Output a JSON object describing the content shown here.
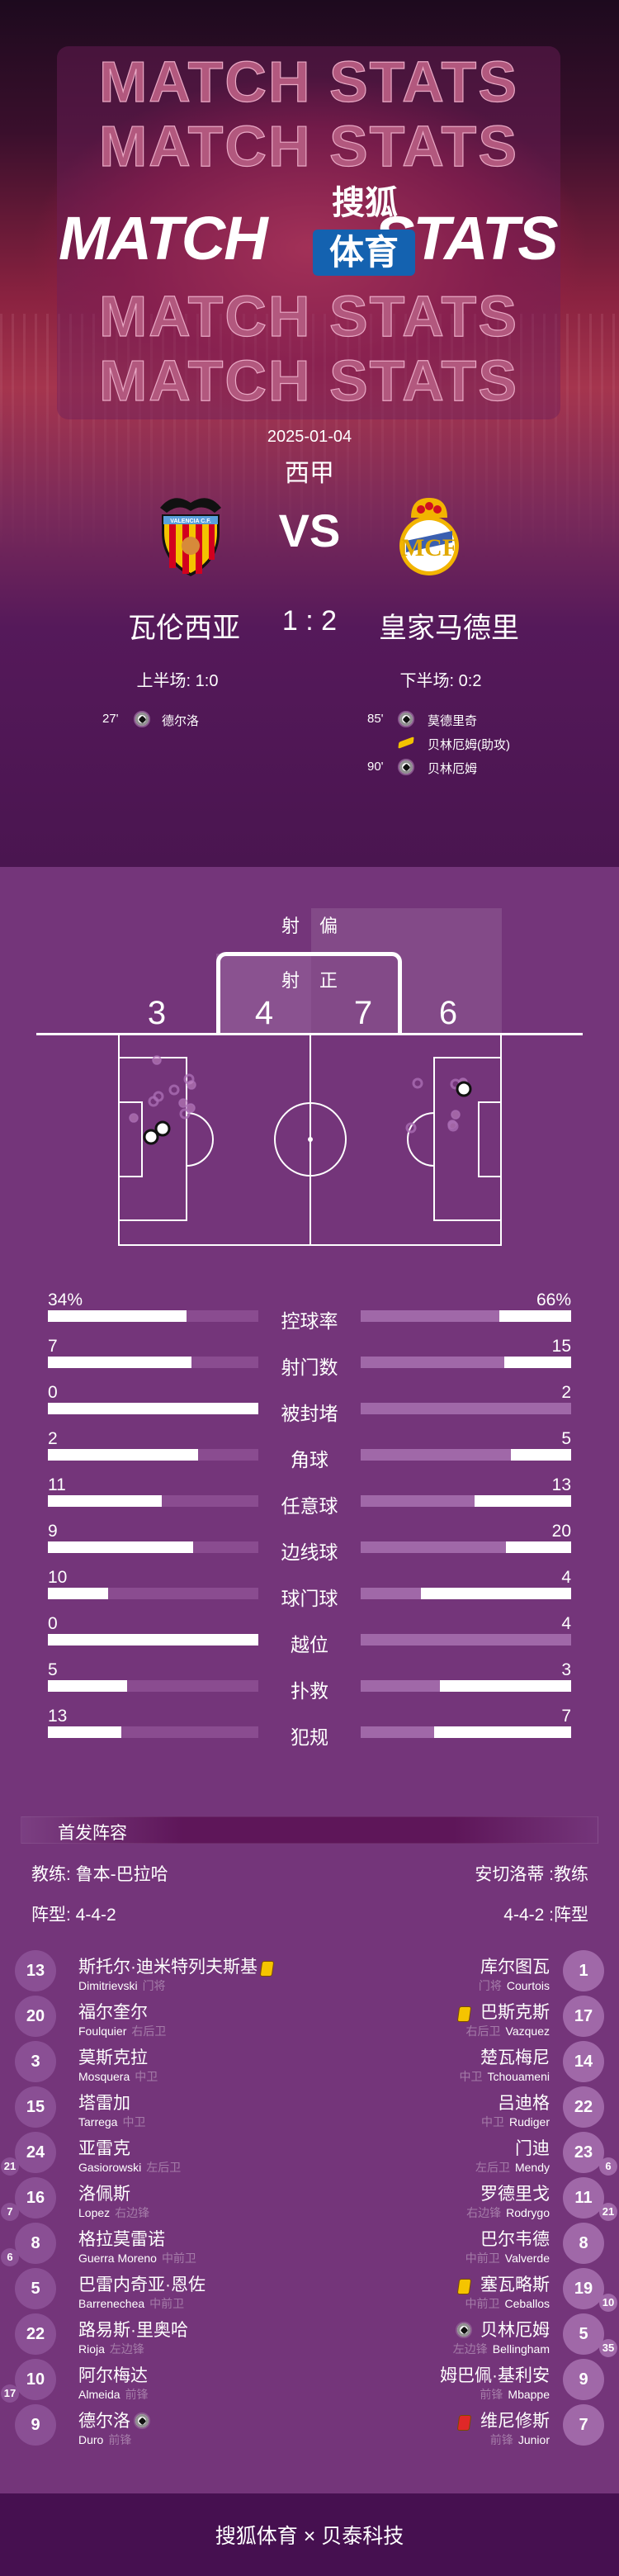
{
  "header": {
    "ghost_text": "MATCH STATS",
    "title_left": "MATCH",
    "title_right": "STATS",
    "brand_top": "搜狐",
    "brand_badge": "体育",
    "brand_badge_color": "#1462b0"
  },
  "match": {
    "date": "2025-01-04",
    "league": "西甲",
    "vs": "VS",
    "home": {
      "name": "瓦伦西亚",
      "crest": "valencia-crest",
      "crest_text": "VALENCIA C.F."
    },
    "away": {
      "name": "皇家马德里",
      "crest": "real-madrid-crest"
    },
    "score": "1 : 2",
    "first_half": "上半场: 1:0",
    "second_half": "下半场: 0:2",
    "home_events": [
      {
        "minute": "27'",
        "icon": "goal-ball-icon",
        "player": "德尔洛"
      }
    ],
    "away_events": [
      {
        "minute": "85'",
        "icon": "goal-ball-icon",
        "player": "莫德里奇"
      },
      {
        "minute": "",
        "icon": "assist-boot-icon",
        "player": "贝林厄姆(助攻)"
      },
      {
        "minute": "90'",
        "icon": "goal-ball-icon",
        "player": "贝林厄姆"
      }
    ]
  },
  "shots": {
    "off_target_label": "射偏",
    "on_target_label": "射正",
    "home_off_target": "3",
    "home_on_target": "4",
    "away_on_target": "7",
    "away_off_target": "6"
  },
  "stats": [
    {
      "label": "控球率",
      "home": "34%",
      "away": "66%",
      "home_value": 34,
      "away_value": 66
    },
    {
      "label": "射门数",
      "home": "7",
      "away": "15",
      "home_value": 7,
      "away_value": 15
    },
    {
      "label": "被封堵",
      "home": "0",
      "away": "2",
      "home_value": 0,
      "away_value": 2
    },
    {
      "label": "角球",
      "home": "2",
      "away": "5",
      "home_value": 2,
      "away_value": 5
    },
    {
      "label": "任意球",
      "home": "11",
      "away": "13",
      "home_value": 11,
      "away_value": 13
    },
    {
      "label": "边线球",
      "home": "9",
      "away": "20",
      "home_value": 9,
      "away_value": 20
    },
    {
      "label": "球门球",
      "home": "10",
      "away": "4",
      "home_value": 10,
      "away_value": 4
    },
    {
      "label": "越位",
      "home": "0",
      "away": "4",
      "home_value": 0,
      "away_value": 4
    },
    {
      "label": "扑救",
      "home": "5",
      "away": "3",
      "home_value": 5,
      "away_value": 3
    },
    {
      "label": "犯规",
      "home": "13",
      "away": "7",
      "home_value": 13,
      "away_value": 7
    }
  ],
  "colors": {
    "background": "#74357a",
    "hero_bottom": "#4a1550",
    "home_bar": "#8a4c90",
    "away_bar": "#a068a8",
    "home_number": "#8a4f94",
    "away_number": "#a068a8",
    "yellow_card": "#f5c400",
    "red_card": "#e02828",
    "footer": "#461050"
  },
  "lineup": {
    "title": "首发阵容",
    "home_coach": "教练: 鲁本-巴拉哈",
    "away_coach": "安切洛蒂 :教练",
    "home_formation": "阵型: 4-4-2",
    "away_formation": "4-4-2 :阵型",
    "home": [
      {
        "number": "13",
        "name": "斯托尔·迪米特列夫斯基",
        "en": "Dimitrievski",
        "pos": "门将",
        "events": [
          "yellow-card"
        ]
      },
      {
        "number": "20",
        "name": "福尔奎尔",
        "en": "Foulquier",
        "pos": "右后卫",
        "events": []
      },
      {
        "number": "3",
        "name": "莫斯克拉",
        "en": "Mosquera",
        "pos": "中卫",
        "events": []
      },
      {
        "number": "15",
        "name": "塔雷加",
        "en": "Tarrega",
        "pos": "中卫",
        "events": []
      },
      {
        "number": "24",
        "sub": "21",
        "name": "亚雷克",
        "en": "Gasiorowski",
        "pos": "左后卫",
        "events": []
      },
      {
        "number": "16",
        "sub": "7",
        "name": "洛佩斯",
        "en": "Lopez",
        "pos": "右边锋",
        "events": []
      },
      {
        "number": "8",
        "sub": "6",
        "name": "格拉莫雷诺",
        "en": "Guerra Moreno",
        "pos": "中前卫",
        "events": []
      },
      {
        "number": "5",
        "name": "巴雷内奇亚·恩佐",
        "en": "Barrenechea",
        "pos": "中前卫",
        "events": []
      },
      {
        "number": "22",
        "name": "路易斯·里奥哈",
        "en": "Rioja",
        "pos": "左边锋",
        "events": []
      },
      {
        "number": "10",
        "sub": "17",
        "name": "阿尔梅达",
        "en": "Almeida",
        "pos": "前锋",
        "events": []
      },
      {
        "number": "9",
        "name": "德尔洛",
        "en": "Duro",
        "pos": "前锋",
        "events": [
          "goal"
        ]
      }
    ],
    "away": [
      {
        "number": "1",
        "name": "库尔图瓦",
        "en": "Courtois",
        "pos": "门将",
        "events": []
      },
      {
        "number": "17",
        "name": "巴斯克斯",
        "en": "Vazquez",
        "pos": "右后卫",
        "events": [
          "yellow-card"
        ]
      },
      {
        "number": "14",
        "name": "楚瓦梅尼",
        "en": "Tchouameni",
        "pos": "中卫",
        "events": []
      },
      {
        "number": "22",
        "name": "吕迪格",
        "en": "Rudiger",
        "pos": "中卫",
        "events": []
      },
      {
        "number": "23",
        "sub": "6",
        "name": "门迪",
        "en": "Mendy",
        "pos": "左后卫",
        "events": []
      },
      {
        "number": "11",
        "sub": "21",
        "name": "罗德里戈",
        "en": "Rodrygo",
        "pos": "右边锋",
        "events": []
      },
      {
        "number": "8",
        "name": "巴尔韦德",
        "en": "Valverde",
        "pos": "中前卫",
        "events": []
      },
      {
        "number": "19",
        "sub": "10",
        "name": "塞瓦略斯",
        "en": "Ceballos",
        "pos": "中前卫",
        "events": [
          "yellow-card"
        ]
      },
      {
        "number": "5",
        "sub": "35",
        "name": "贝林厄姆",
        "en": "Bellingham",
        "pos": "左边锋",
        "events": [
          "goal"
        ]
      },
      {
        "number": "9",
        "name": "姆巴佩·基利安",
        "en": "Mbappe",
        "pos": "前锋",
        "events": []
      },
      {
        "number": "7",
        "name": "维尼修斯",
        "en": "Junior",
        "pos": "前锋",
        "events": [
          "red-card"
        ]
      }
    ]
  },
  "footer": {
    "text": "搜狐体育 × 贝泰科技"
  }
}
